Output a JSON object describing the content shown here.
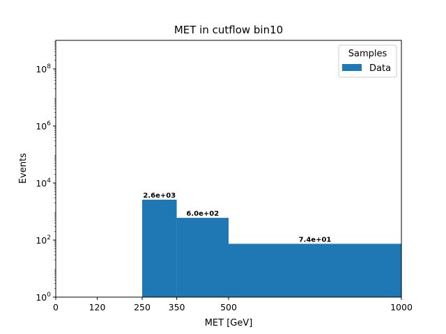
{
  "chart_data": {
    "type": "bar",
    "title": "MET in cutflow bin10",
    "xlabel": "MET [GeV]",
    "ylabel": "Events",
    "bins": [
      [
        250,
        350
      ],
      [
        350,
        500
      ],
      [
        500,
        1000
      ]
    ],
    "series": [
      {
        "name": "Data",
        "values": [
          2600,
          600,
          74
        ],
        "color": "#1f77b4"
      }
    ],
    "bar_labels": [
      "2.6e+03",
      "6.0e+02",
      "7.4e+01"
    ],
    "x_ticks": [
      0,
      120,
      250,
      350,
      500,
      1000
    ],
    "xlim": [
      0,
      1000
    ],
    "y_scale": "log",
    "ylim": [
      1,
      1000000000
    ],
    "y_ticks": [
      {
        "value": 1,
        "exp": "0"
      },
      {
        "value": 100,
        "exp": "2"
      },
      {
        "value": 10000,
        "exp": "4"
      },
      {
        "value": 1000000,
        "exp": "6"
      },
      {
        "value": 100000000,
        "exp": "8"
      }
    ],
    "legend": {
      "title": "Samples",
      "placement": "top-right"
    },
    "grid": false
  }
}
